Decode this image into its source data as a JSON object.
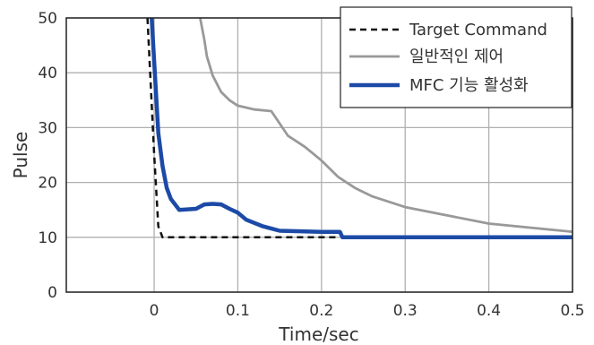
{
  "chart_data": {
    "type": "line",
    "xlabel": "Time/sec",
    "ylabel": "Pulse",
    "xlim": [
      -0.105,
      0.5
    ],
    "ylim": [
      0,
      50
    ],
    "x_ticks": [
      0,
      0.1,
      0.2,
      0.3,
      0.4,
      0.5
    ],
    "x_tick_labels": [
      "0",
      "0.1",
      "0.2",
      "0.3",
      "0.4",
      "0.5"
    ],
    "y_ticks": [
      0,
      10,
      20,
      30,
      40,
      50
    ],
    "y_tick_labels": [
      "0",
      "10",
      "20",
      "30",
      "40",
      "50"
    ],
    "grid": true,
    "legend_position": "top-right",
    "series": [
      {
        "name": "Target Command",
        "color": "#111111",
        "style": "dashed",
        "x": [
          -0.008,
          0.0,
          0.005,
          0.01,
          0.22
        ],
        "y": [
          50,
          25,
          12,
          10,
          10
        ]
      },
      {
        "name": "일반적인 제어",
        "color": "#999999",
        "style": "solid",
        "x": [
          0.055,
          0.06,
          0.063,
          0.07,
          0.08,
          0.09,
          0.1,
          0.12,
          0.14,
          0.16,
          0.18,
          0.2,
          0.22,
          0.24,
          0.26,
          0.3,
          0.34,
          0.4,
          0.5
        ],
        "y": [
          50,
          46,
          43,
          39.5,
          36.5,
          35,
          34,
          33.3,
          33,
          28.5,
          26.5,
          24,
          21,
          19,
          17.5,
          15.5,
          14.3,
          12.5,
          11
        ]
      },
      {
        "name": "MFC 기능 활성화",
        "color": "#1c4aa6",
        "style": "solid",
        "x": [
          -0.003,
          0.0,
          0.005,
          0.01,
          0.015,
          0.02,
          0.025,
          0.03,
          0.05,
          0.06,
          0.07,
          0.08,
          0.09,
          0.1,
          0.11,
          0.13,
          0.15,
          0.2,
          0.222,
          0.225,
          0.3,
          0.4,
          0.5
        ],
        "y": [
          50,
          42,
          29,
          23,
          19,
          17,
          16,
          15,
          15.2,
          16,
          16.1,
          16,
          15.2,
          14.5,
          13.2,
          12,
          11.2,
          11,
          11,
          10,
          10,
          10,
          10
        ]
      }
    ]
  }
}
